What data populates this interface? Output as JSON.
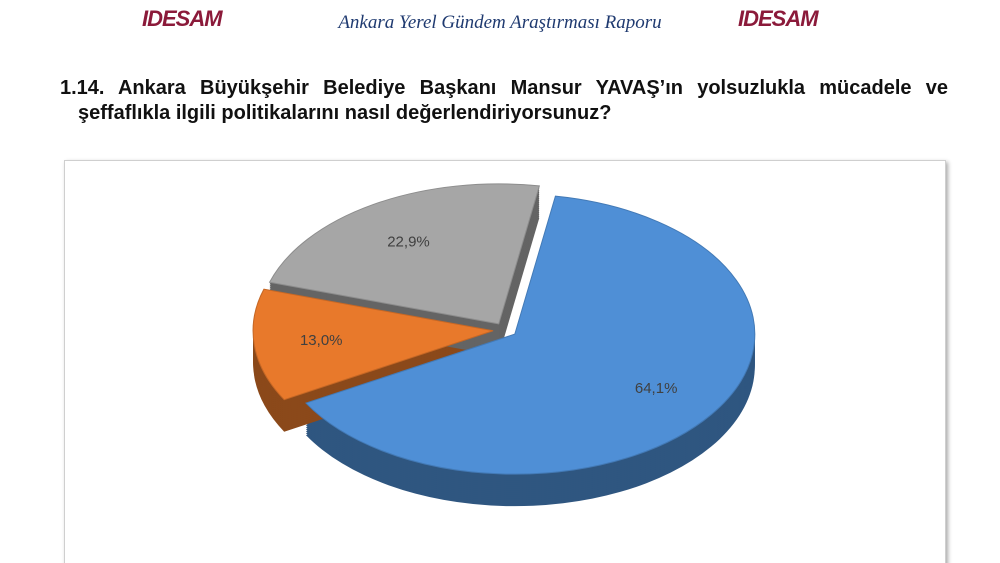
{
  "header": {
    "logo": "IDESAM",
    "report_title": "Ankara Yerel Gündem Araştırması Raporu"
  },
  "chart_data": {
    "type": "pie",
    "title": "1.14. Ankara Büyükşehir Belediye Başkanı Mansur YAVAŞ’ın yolsuzlukla mücadele ve şeffaflıkla ilgili politikalarını nasıl değerlendiriyorsunuz?",
    "values": [
      64.1,
      13.0,
      22.9
    ],
    "value_labels": [
      "64,1%",
      "13,0%",
      "22,9%"
    ],
    "colors": [
      "#4f8fd6",
      "#e8792b",
      "#a6a6a6"
    ]
  }
}
